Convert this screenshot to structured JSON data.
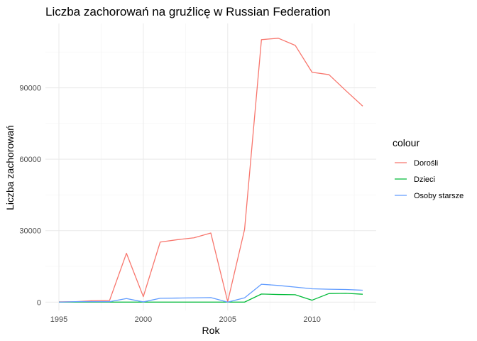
{
  "chart_data": {
    "type": "line",
    "title": "Liczba zachorowań na gruźlicę w Russian Federation",
    "xlabel": "Rok",
    "ylabel": "Liczba zachorowań",
    "x": [
      1995,
      1996,
      1997,
      1998,
      1999,
      2000,
      2001,
      2002,
      2003,
      2004,
      2005,
      2006,
      2007,
      2008,
      2009,
      2010,
      2011,
      2012,
      2013
    ],
    "xlim": [
      1994.2,
      2013.8
    ],
    "ylim": [
      -3500,
      117000
    ],
    "x_ticks": [
      1995,
      2000,
      2005,
      2010
    ],
    "y_ticks": [
      0,
      30000,
      60000,
      90000
    ],
    "grid": true,
    "legend": {
      "title": "colour",
      "position": "right"
    },
    "series": [
      {
        "name": "Dorośli",
        "color": "#F8766D",
        "values": [
          100,
          200,
          600,
          700,
          20500,
          2300,
          25200,
          26200,
          27000,
          29000,
          200,
          30500,
          110200,
          110800,
          107800,
          96500,
          95500,
          88800,
          82300
        ]
      },
      {
        "name": "Dzieci",
        "color": "#00BA38",
        "values": [
          0,
          0,
          0,
          0,
          0,
          0,
          0,
          0,
          0,
          0,
          0,
          0,
          3400,
          3200,
          3100,
          800,
          3600,
          3700,
          3300
        ]
      },
      {
        "name": "Osoby starsze",
        "color": "#619CFF",
        "values": [
          0,
          200,
          200,
          200,
          1500,
          100,
          1600,
          1700,
          1800,
          1900,
          0,
          1800,
          7500,
          7000,
          6300,
          5600,
          5400,
          5300,
          5000
        ]
      }
    ]
  }
}
